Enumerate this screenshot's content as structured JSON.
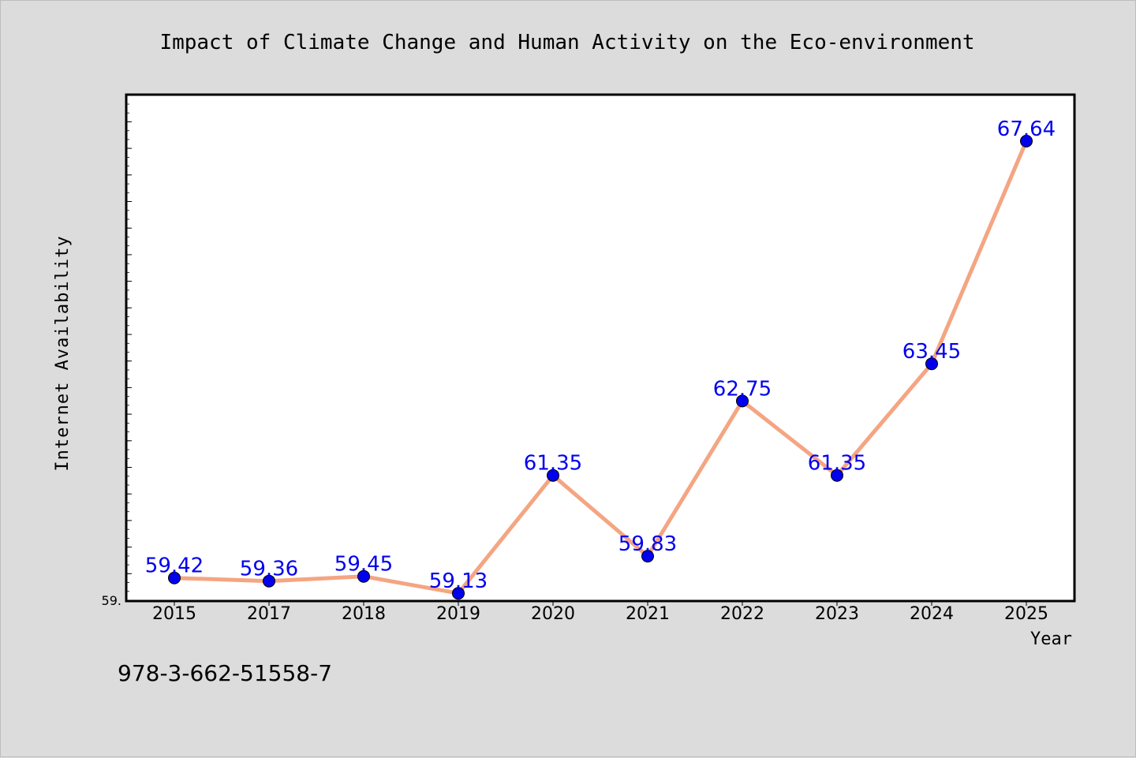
{
  "chart_data": {
    "type": "line",
    "title": "Impact of Climate Change and Human Activity on the Eco-environment",
    "xlabel": "Year",
    "ylabel": "Internet Availability",
    "categories": [
      "2015",
      "2017",
      "2018",
      "2019",
      "2020",
      "2021",
      "2022",
      "2023",
      "2024",
      "2025"
    ],
    "series": [
      {
        "values": [
          59.42,
          59.36,
          59.45,
          59.13,
          61.35,
          59.83,
          62.75,
          61.35,
          63.45,
          67.64
        ],
        "data_labels": [
          "59.42",
          "59.36",
          "59.45",
          "59.13",
          "61.35",
          "59.83",
          "62.75",
          "61.35",
          "63.45",
          "67.64"
        ]
      }
    ],
    "y_tick_label": "59.",
    "ylim": [
      59.0,
      68.5
    ],
    "grid": false,
    "line_color": "#f4a582",
    "marker_color": "#0000ee",
    "label_color": "#0000ee"
  },
  "footer": {
    "isbn": "978-3-662-51558-7"
  }
}
